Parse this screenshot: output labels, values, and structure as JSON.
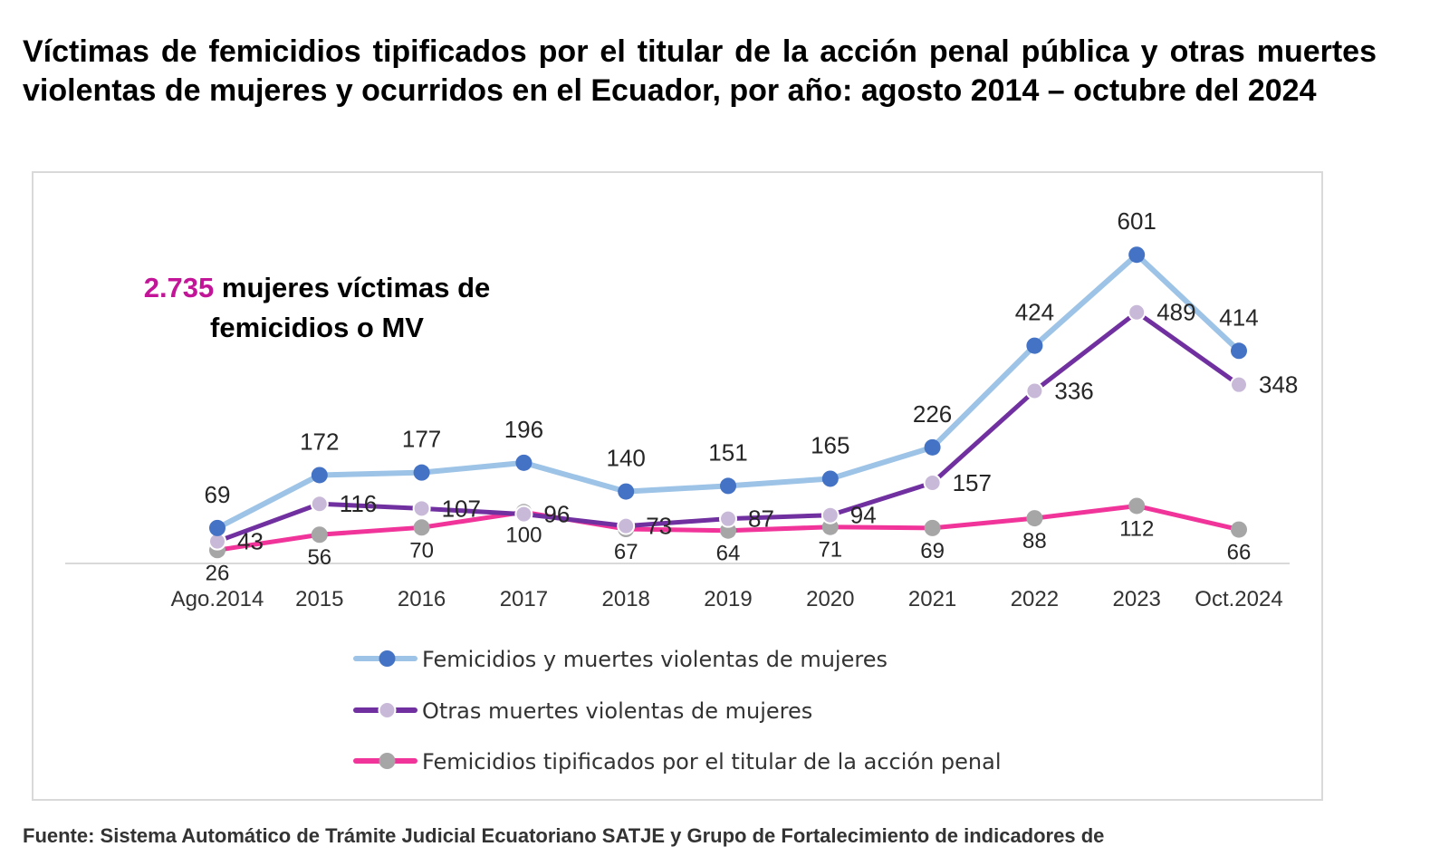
{
  "title": "Víctimas de femicidios tipificados por el titular de la acción penal pública y otras muertes violentas de mujeres y ocurridos en el Ecuador, por año: agosto 2014 – octubre del 2024",
  "annotation": {
    "total": "2.735",
    "text": "mujeres víctimas de femicidios o MV"
  },
  "source": "Fuente: Sistema Automático de Trámite Judicial Ecuatoriano SATJE y Grupo de Fortalecimiento de indicadores de",
  "chart_data": {
    "type": "line",
    "categories": [
      "Ago.2014",
      "2015",
      "2016",
      "2017",
      "2018",
      "2019",
      "2020",
      "2021",
      "2022",
      "2023",
      "Oct.2024"
    ],
    "series": [
      {
        "name": "Femicidios y muertes violentas de mujeres",
        "color": "#9dc3e6",
        "marker_color": "#4472c4",
        "values": [
          69,
          172,
          177,
          196,
          140,
          151,
          165,
          226,
          424,
          601,
          414
        ]
      },
      {
        "name": "Otras muertes violentas de mujeres",
        "color": "#7030a0",
        "marker_color": "#c9b9d8",
        "values": [
          43,
          116,
          107,
          96,
          73,
          87,
          94,
          157,
          336,
          489,
          348
        ]
      },
      {
        "name": "Femicidios tipificados por el titular de la acción penal",
        "color": "#f0349a",
        "marker_color": "#a6a6a6",
        "values": [
          26,
          56,
          70,
          100,
          67,
          64,
          71,
          69,
          88,
          112,
          66
        ]
      }
    ],
    "ylim": [
      0,
      650
    ],
    "grid": false,
    "legend": "bottom"
  }
}
